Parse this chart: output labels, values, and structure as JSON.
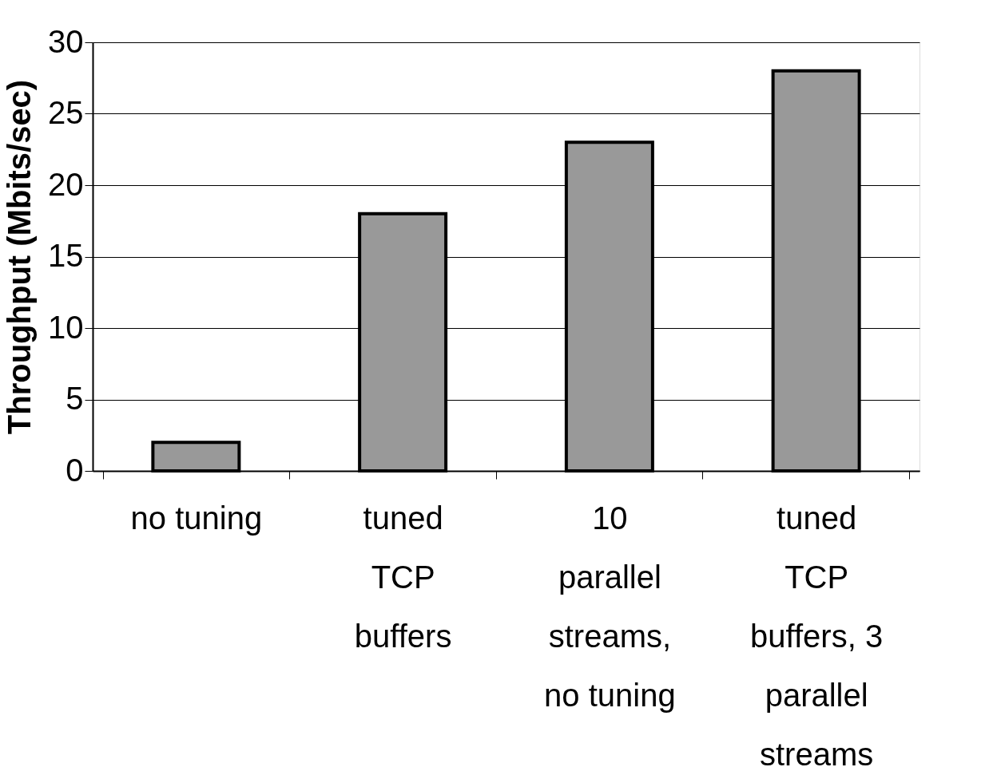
{
  "chart_data": {
    "type": "bar",
    "categories": [
      "no tuning",
      "tuned\nTCP\nbuffers",
      "10\nparallel\nstreams,\nno tuning",
      "tuned\nTCP\nbuffers, 3\nparallel\nstreams"
    ],
    "values": [
      2,
      18,
      23,
      28
    ],
    "color": "#999999",
    "ylabel": "Throughput (Mbits/sec)",
    "ylim": [
      0,
      30
    ],
    "yticks": [
      0,
      5,
      10,
      15,
      20,
      25,
      30
    ],
    "grid": "y"
  }
}
